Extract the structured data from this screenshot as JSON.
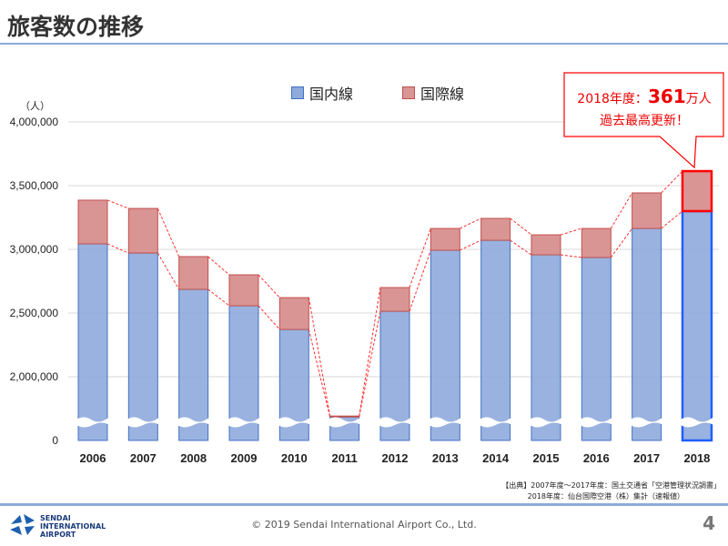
{
  "header": {
    "title": "旅客数の推移"
  },
  "chart_data": {
    "type": "bar",
    "stacked": true,
    "ylabel": "（人）",
    "yticks": [
      "0",
      "2,000,000",
      "2,500,000",
      "3,000,000",
      "3,500,000",
      "4,000,000"
    ],
    "ylim": [
      0,
      4000000
    ],
    "axis_break": "between 0 and 2,000,000",
    "grid": true,
    "legend_placement": "top",
    "categories": [
      "2006",
      "2007",
      "2008",
      "2009",
      "2010",
      "2011",
      "2012",
      "2013",
      "2014",
      "2015",
      "2016",
      "2017",
      "2018"
    ],
    "series": [
      {
        "name": "国内線",
        "color": "#8eaadb",
        "values": [
          3043000,
          2971000,
          2686000,
          2557000,
          2371000,
          1779000,
          2514000,
          2993000,
          3071000,
          2957000,
          2936000,
          3164000,
          3300000
        ]
      },
      {
        "name": "国際線",
        "color": "#d99594",
        "values": [
          343000,
          350000,
          257000,
          243000,
          250000,
          71000,
          186000,
          171000,
          172000,
          157000,
          228000,
          279000,
          314000
        ]
      }
    ],
    "highlight": "2018",
    "annotation": {
      "line1_prefix": "2018年度：",
      "line1_value": "361",
      "line1_suffix": "万人",
      "line2": "過去最高更新！"
    }
  },
  "source": {
    "line1": "【出典】2007年度～2017年度：国土交通省「空港管理状況調書」",
    "line2": "2018年度：仙台国際空港（株）集計（速報値）"
  },
  "footer": {
    "copyright": "© 2019 Sendai International Airport Co., Ltd.",
    "page": "4",
    "logo_text": "SENDAI INTERNATIONAL AIRPORT"
  }
}
